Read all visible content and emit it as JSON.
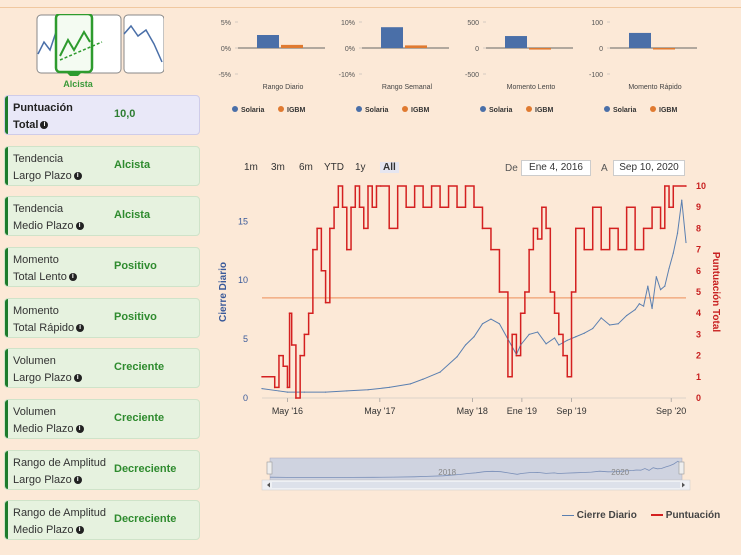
{
  "summary": {
    "logo_label": "Alcista",
    "cards": [
      {
        "label1": "Puntuación",
        "label2": "Total",
        "value": "10,0"
      },
      {
        "label1": "Tendencia",
        "label2": "Largo Plazo",
        "value": "Alcista"
      },
      {
        "label1": "Tendencia",
        "label2": "Medio Plazo",
        "value": "Alcista"
      },
      {
        "label1": "Momento",
        "label2": "Total Lento",
        "value": "Positivo"
      },
      {
        "label1": "Momento",
        "label2": "Total Rápido",
        "value": "Positivo"
      },
      {
        "label1": "Volumen",
        "label2": "Largo Plazo",
        "value": "Creciente"
      },
      {
        "label1": "Volumen",
        "label2": "Medio Plazo",
        "value": "Creciente"
      },
      {
        "label1": "Rango de Amplitud",
        "label2": "Largo Plazo",
        "value": "Decreciente"
      },
      {
        "label1": "Rango de Amplitud",
        "label2": "Medio Plazo",
        "value": "Decreciente"
      }
    ],
    "colors": {
      "positive": "#2e8b2e",
      "accent": "#1e7b2c"
    }
  },
  "controls": {
    "range_buttons": [
      "1m",
      "3m",
      "6m",
      "YTD",
      "1y",
      "All"
    ],
    "selected": "All",
    "from_label": "De",
    "from_value": "Ene 4, 2016",
    "to_label": "A",
    "to_value": "Sep 10, 2020"
  },
  "chart_data": [
    {
      "type": "bar",
      "categories": [
        "Rango Diario"
      ],
      "series": [
        {
          "name": "Solaria",
          "values": [
            2.5
          ],
          "color": "#4a6fa8"
        },
        {
          "name": "IGBM",
          "values": [
            0.6
          ],
          "color": "#e07a30"
        }
      ],
      "yticks": [
        "5%",
        "0%",
        "-5%"
      ],
      "ylim": [
        -5,
        5
      ]
    },
    {
      "type": "bar",
      "categories": [
        "Rango Semanal"
      ],
      "series": [
        {
          "name": "Solaria",
          "values": [
            8
          ],
          "color": "#4a6fa8"
        },
        {
          "name": "IGBM",
          "values": [
            1
          ],
          "color": "#e07a30"
        }
      ],
      "yticks": [
        "10%",
        "0%",
        "-10%"
      ],
      "ylim": [
        -10,
        10
      ]
    },
    {
      "type": "bar",
      "categories": [
        "Momento Lento"
      ],
      "series": [
        {
          "name": "Solaria",
          "values": [
            230
          ],
          "color": "#4a6fa8"
        },
        {
          "name": "IGBM",
          "values": [
            -30
          ],
          "color": "#e07a30"
        }
      ],
      "yticks": [
        "500",
        "0",
        "-500"
      ],
      "ylim": [
        -500,
        500
      ]
    },
    {
      "type": "bar",
      "categories": [
        "Momento Rápido"
      ],
      "series": [
        {
          "name": "Solaria",
          "values": [
            58
          ],
          "color": "#4a6fa8"
        },
        {
          "name": "IGBM",
          "values": [
            -3
          ],
          "color": "#e07a30"
        }
      ],
      "yticks": [
        "100",
        "0",
        "-100"
      ],
      "ylim": [
        -100,
        100
      ]
    },
    {
      "type": "line",
      "x_ticks": [
        "May '16",
        "May '17",
        "May '18",
        "Ene '19",
        "Sep '19",
        "Sep '20"
      ],
      "x_tick_pos": [
        0.06,
        0.278,
        0.496,
        0.613,
        0.73,
        0.965
      ],
      "ylabel_left": "Cierre Diario",
      "ylabel_right": "Puntuación Total",
      "ylim_left": [
        0,
        18
      ],
      "ylim_right": [
        0,
        10
      ],
      "yticks_left": [
        "0",
        "5",
        "10",
        "15"
      ],
      "yticks_right": [
        "0",
        "1",
        "2",
        "3",
        "4",
        "5",
        "6",
        "7",
        "8",
        "9",
        "10"
      ],
      "reference_line_left": 8.5,
      "series": [
        {
          "name": "Cierre Diario",
          "color": "#5a7fb0",
          "t": [
            0,
            0.04,
            0.06,
            0.1,
            0.15,
            0.2,
            0.25,
            0.3,
            0.35,
            0.38,
            0.42,
            0.46,
            0.48,
            0.5,
            0.52,
            0.54,
            0.56,
            0.58,
            0.6,
            0.61,
            0.63,
            0.65,
            0.67,
            0.69,
            0.7,
            0.72,
            0.74,
            0.76,
            0.78,
            0.8,
            0.82,
            0.84,
            0.86,
            0.88,
            0.89,
            0.9,
            0.91,
            0.92,
            0.93,
            0.94,
            0.95,
            0.96,
            0.97,
            0.98,
            0.99,
            1.0
          ],
          "values": [
            0.8,
            0.6,
            0.5,
            0.5,
            0.5,
            0.6,
            0.7,
            0.9,
            1.2,
            1.6,
            2.2,
            3.5,
            4.5,
            5.2,
            6.3,
            6.7,
            6.3,
            5.0,
            3.7,
            4.5,
            5.4,
            5.6,
            4.6,
            5.1,
            4.5,
            4.9,
            5.2,
            5.5,
            5.9,
            6.8,
            6.2,
            6.3,
            7.0,
            7.5,
            8.0,
            7.8,
            9.5,
            7.6,
            10.3,
            9.2,
            9.5,
            11.0,
            12.3,
            14.0,
            16.8,
            13.2
          ]
        },
        {
          "name": "Puntuación",
          "color": "#d42020",
          "t": [
            0,
            0.03,
            0.04,
            0.05,
            0.06,
            0.065,
            0.07,
            0.08,
            0.09,
            0.1,
            0.11,
            0.12,
            0.13,
            0.14,
            0.15,
            0.16,
            0.17,
            0.18,
            0.19,
            0.2,
            0.21,
            0.22,
            0.23,
            0.24,
            0.25,
            0.26,
            0.27,
            0.28,
            0.3,
            0.32,
            0.34,
            0.36,
            0.38,
            0.4,
            0.42,
            0.44,
            0.46,
            0.48,
            0.5,
            0.52,
            0.54,
            0.56,
            0.58,
            0.59,
            0.6,
            0.61,
            0.62,
            0.63,
            0.64,
            0.65,
            0.66,
            0.67,
            0.68,
            0.69,
            0.7,
            0.71,
            0.72,
            0.73,
            0.74,
            0.76,
            0.78,
            0.8,
            0.82,
            0.84,
            0.86,
            0.88,
            0.9,
            0.92,
            0.94,
            0.95,
            0.96,
            0.97,
            1.0
          ],
          "values": [
            1,
            0.5,
            2,
            1.5,
            0.5,
            4,
            2.5,
            0,
            2,
            3,
            4,
            7,
            8,
            6,
            4.5,
            8,
            9,
            10,
            9,
            7,
            9,
            10,
            9,
            8,
            10,
            9,
            10,
            10,
            8,
            10,
            9,
            10,
            9,
            10,
            9,
            10,
            9,
            10,
            9,
            8,
            7,
            5,
            1,
            3,
            2,
            4,
            5,
            7,
            8,
            7.5,
            9,
            8,
            5,
            4,
            3,
            2,
            1,
            5,
            8,
            7,
            9,
            7,
            8,
            7,
            9,
            7,
            8,
            9,
            8,
            10,
            9,
            10,
            10
          ]
        }
      ],
      "navigator": {
        "labels": [
          "2018",
          "2020"
        ],
        "label_pos": [
          0.43,
          0.85
        ]
      }
    }
  ],
  "bottom_legend": [
    {
      "name": "Cierre Diario",
      "color": "#5a7fb0"
    },
    {
      "name": "Puntuación",
      "color": "#d42020"
    }
  ]
}
